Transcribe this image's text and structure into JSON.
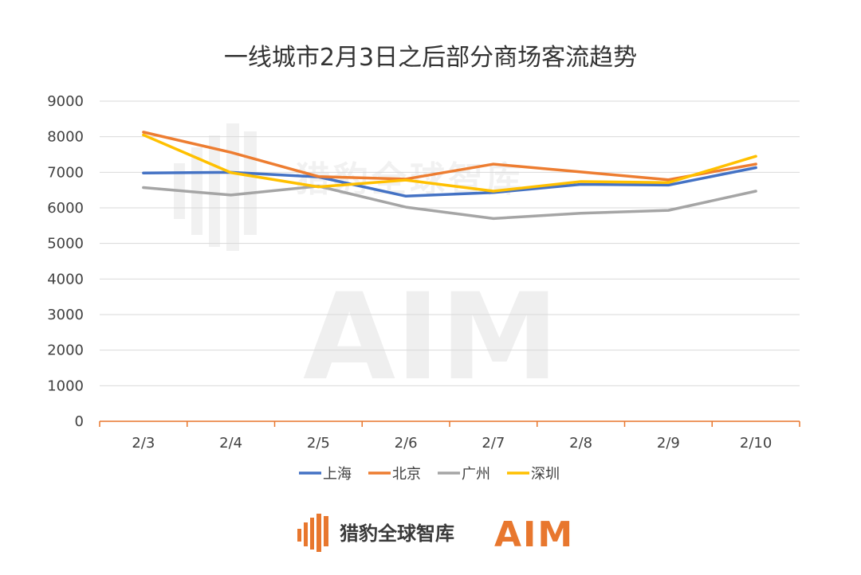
{
  "chart_data": {
    "type": "line",
    "title": "一线城市2月3日之后部分商场客流趋势",
    "categories": [
      "2/3",
      "2/4",
      "2/5",
      "2/6",
      "2/7",
      "2/8",
      "2/9",
      "2/10"
    ],
    "ylim": [
      0,
      9000
    ],
    "yticks": [
      0,
      1000,
      2000,
      3000,
      4000,
      5000,
      6000,
      7000,
      8000,
      9000
    ],
    "grid": true,
    "legend_position": "bottom",
    "series": [
      {
        "name": "上海",
        "color": "#4472c4",
        "values": [
          6980,
          7000,
          6870,
          6330,
          6430,
          6660,
          6640,
          7130
        ]
      },
      {
        "name": "北京",
        "color": "#ed7d31",
        "values": [
          8130,
          7560,
          6880,
          6810,
          7230,
          7010,
          6790,
          7230
        ]
      },
      {
        "name": "广州",
        "color": "#a5a5a5",
        "values": [
          6570,
          6360,
          6610,
          6020,
          5700,
          5850,
          5930,
          6470
        ]
      },
      {
        "name": "深圳",
        "color": "#ffc000",
        "values": [
          8050,
          6990,
          6590,
          6780,
          6470,
          6740,
          6710,
          7450
        ]
      }
    ]
  },
  "footer": {
    "brand_name": "猎豹全球智库",
    "aim_logo": "AIM",
    "brand_color": "#e8772e"
  }
}
